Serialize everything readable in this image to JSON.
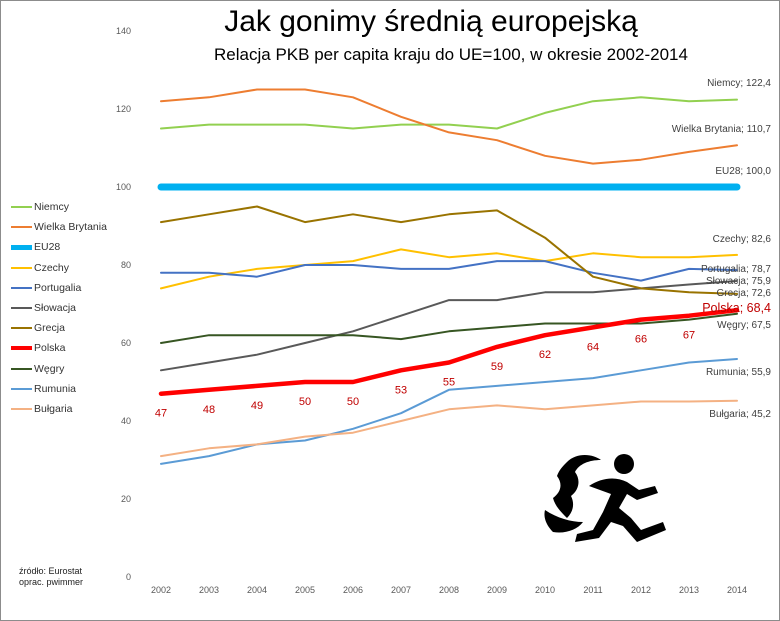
{
  "header": {
    "title": "Jak gonimy średnią europejską",
    "subtitle": "Relacja PKB per capita kraju do UE=100, w okresie 2002-2014"
  },
  "source": {
    "line1": "źródło: Eurostat",
    "line2": "oprac. pwimmer"
  },
  "chart_data": {
    "type": "line",
    "title": "Jak gonimy średnią europejską",
    "subtitle": "Relacja PKB per capita kraju do UE=100, w okresie 2002-2014",
    "xlabel": "",
    "ylabel": "",
    "ylim": [
      0,
      140
    ],
    "yticks": [
      0,
      20,
      40,
      60,
      80,
      100,
      120,
      140
    ],
    "x": [
      "2002",
      "2003",
      "2004",
      "2005",
      "2006",
      "2007",
      "2008",
      "2009",
      "2010",
      "2011",
      "2012",
      "2013",
      "2014"
    ],
    "grid": false,
    "legend_position": "left",
    "series": [
      {
        "name": "Niemcy",
        "color": "#92d050",
        "width": 2,
        "values": [
          115,
          116,
          116,
          116,
          115,
          116,
          116,
          115,
          119,
          122,
          123,
          122,
          122.4
        ],
        "end_label": "Niemcy; 122,4"
      },
      {
        "name": "Wielka Brytania",
        "color": "#ed7d31",
        "width": 2,
        "values": [
          122,
          123,
          125,
          125,
          123,
          118,
          114,
          112,
          108,
          106,
          107,
          109,
          110.7
        ],
        "end_label": "Wielka Brytania; 110,7"
      },
      {
        "name": "EU28",
        "color": "#00b0f0",
        "width": 7,
        "values": [
          100,
          100,
          100,
          100,
          100,
          100,
          100,
          100,
          100,
          100,
          100,
          100,
          100
        ],
        "end_label": "EU28; 100,0"
      },
      {
        "name": "Czechy",
        "color": "#ffc000",
        "width": 2,
        "values": [
          74,
          77,
          79,
          80,
          81,
          84,
          82,
          83,
          81,
          83,
          82,
          82,
          82.6
        ],
        "end_label": "Czechy; 82,6"
      },
      {
        "name": "Portugalia",
        "color": "#4472c4",
        "width": 2,
        "values": [
          78,
          78,
          77,
          80,
          80,
          79,
          79,
          81,
          81,
          78,
          76,
          79,
          78.7
        ],
        "end_label": "Portugalia; 78,7"
      },
      {
        "name": "Słowacja",
        "color": "#595959",
        "width": 2,
        "values": [
          53,
          55,
          57,
          60,
          63,
          67,
          71,
          71,
          73,
          73,
          74,
          75,
          75.9
        ],
        "end_label": "Słowacja; 75,9"
      },
      {
        "name": "Grecja",
        "color": "#997300",
        "width": 2,
        "values": [
          91,
          93,
          95,
          91,
          93,
          91,
          93,
          94,
          87,
          77,
          74,
          73,
          72.6
        ],
        "end_label": "Grecja; 72,6"
      },
      {
        "name": "Polska",
        "color": "#ff0000",
        "width": 4.5,
        "values": [
          47,
          48,
          49,
          50,
          50,
          53,
          55,
          59,
          62,
          64,
          66,
          67,
          68.4
        ],
        "end_label": "Polska; 68,4",
        "data_labels": [
          "47",
          "48",
          "49",
          "50",
          "50",
          "53",
          "55",
          "59",
          "62",
          "64",
          "66",
          "67"
        ]
      },
      {
        "name": "Węgry",
        "color": "#375623",
        "width": 2,
        "values": [
          60,
          62,
          62,
          62,
          62,
          61,
          63,
          64,
          65,
          65,
          65,
          66,
          67.5
        ],
        "end_label": "Węgry; 67,5"
      },
      {
        "name": "Rumunia",
        "color": "#5b9bd5",
        "width": 2,
        "values": [
          29,
          31,
          34,
          35,
          38,
          42,
          48,
          49,
          50,
          51,
          53,
          55,
          55.9
        ],
        "end_label": "Rumunia; 55,9"
      },
      {
        "name": "Bułgaria",
        "color": "#f4b183",
        "width": 2,
        "values": [
          31,
          33,
          34,
          36,
          37,
          40,
          43,
          44,
          43,
          44,
          45,
          45,
          45.2
        ],
        "end_label": "Bułgaria; 45,2"
      }
    ]
  }
}
